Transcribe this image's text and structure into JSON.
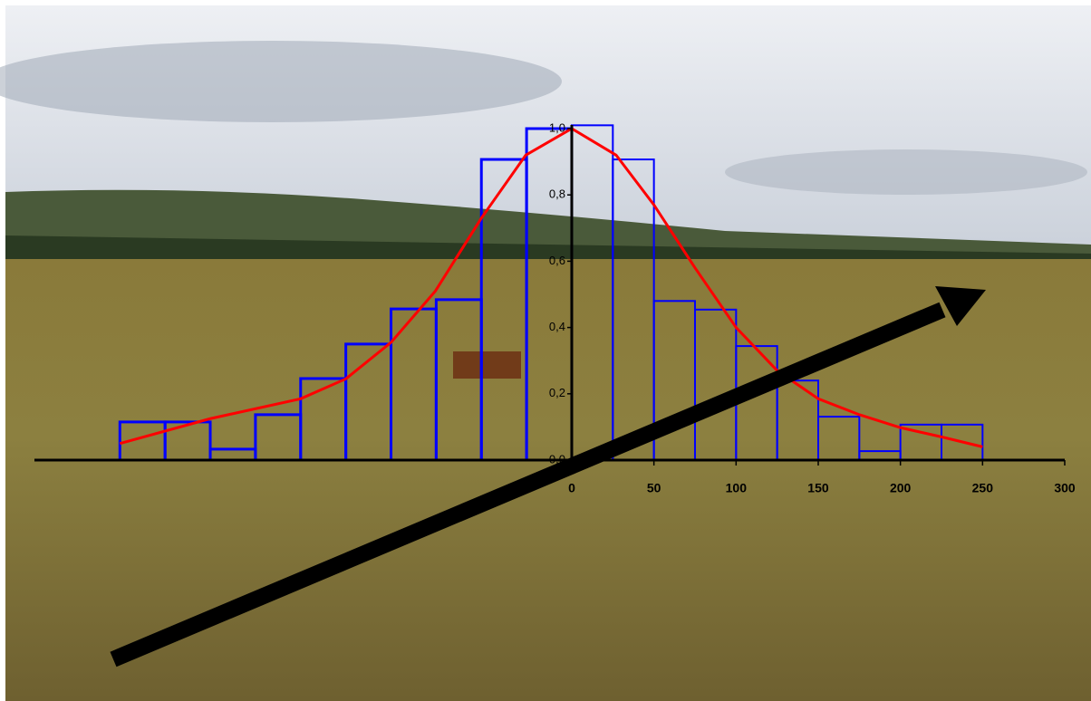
{
  "chart_data": {
    "type": "histogram",
    "bins": [
      -275,
      -247.5,
      -220,
      -192.5,
      -165,
      -137.5,
      -110,
      -82.5,
      -55,
      -27.5,
      0,
      25,
      50,
      75,
      100,
      125,
      150,
      175,
      200,
      225,
      250
    ],
    "values": [
      0.115,
      0.115,
      0.033,
      0.137,
      0.246,
      0.35,
      0.456,
      0.484,
      0.907,
      1.0,
      1.01,
      0.907,
      0.48,
      0.454,
      0.344,
      0.24,
      0.131,
      0.027,
      0.107,
      0.107
    ],
    "color": "#0000ff",
    "curve": {
      "x": [
        -275,
        -220,
        -165,
        -137.5,
        -110,
        -83,
        -55,
        -28,
        0,
        27,
        50,
        75,
        100,
        125,
        150,
        175,
        200,
        225,
        250
      ],
      "values": [
        0.05,
        0.125,
        0.185,
        0.245,
        0.355,
        0.51,
        0.73,
        0.92,
        1.0,
        0.92,
        0.77,
        0.58,
        0.4,
        0.27,
        0.185,
        0.137,
        0.098,
        0.07,
        0.04
      ],
      "color": "#ff0000"
    },
    "xlim": [
      -327,
      300
    ],
    "ylim": [
      0,
      1
    ],
    "xticks": [
      0,
      50,
      100,
      150,
      200,
      250,
      300
    ],
    "yticks": [
      {
        "value": 0,
        "label": "0,0"
      },
      {
        "value": 0.2,
        "label": "0,2"
      },
      {
        "value": 0.4,
        "label": "0,4"
      },
      {
        "value": 0.6,
        "label": "0,6"
      },
      {
        "value": 0.8,
        "label": "0,8"
      },
      {
        "value": 1,
        "label": "1,0"
      }
    ]
  }
}
